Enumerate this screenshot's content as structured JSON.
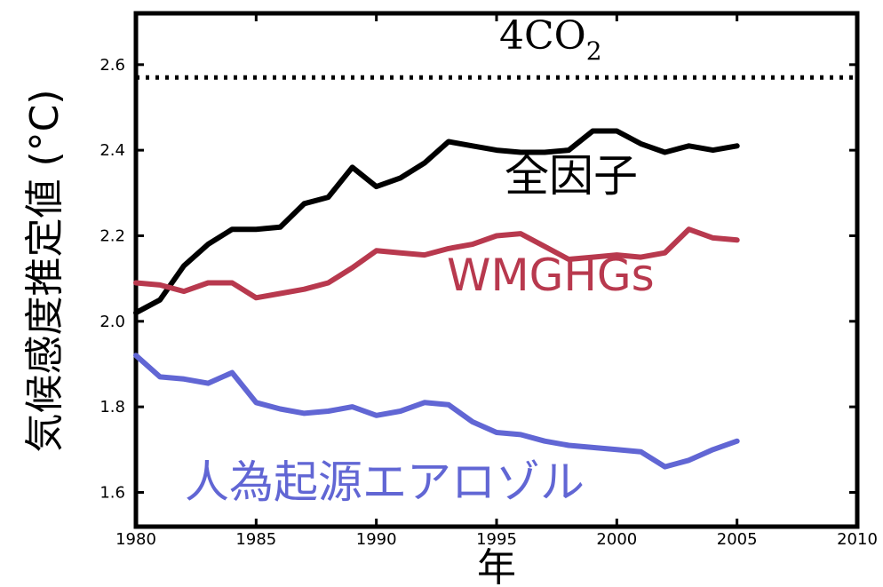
{
  "chart_data": {
    "type": "line",
    "xlabel": "年",
    "ylabel": "気候感度推定値 (°C)",
    "xlim": [
      1980,
      2010
    ],
    "ylim": [
      1.52,
      2.72
    ],
    "x_ticks": [
      1980,
      1985,
      1990,
      1995,
      2000,
      2005,
      2010
    ],
    "x_tick_labels": [
      "1980",
      "1985",
      "1990",
      "1995",
      "2000",
      "2005",
      "2010"
    ],
    "y_ticks": [
      1.6,
      1.8,
      2.0,
      2.2,
      2.4,
      2.6
    ],
    "y_tick_labels": [
      "1.6",
      "1.8",
      "2.0",
      "2.2",
      "2.4",
      "2.6"
    ],
    "grid": false,
    "reference_line": {
      "label": "4CO",
      "subscript": "2",
      "y": 2.57,
      "style": "dotted",
      "color": "#000000"
    },
    "series": [
      {
        "name": "全因子",
        "color": "#000000",
        "x": [
          1980,
          1981,
          1982,
          1983,
          1984,
          1985,
          1986,
          1987,
          1988,
          1989,
          1990,
          1991,
          1992,
          1993,
          1994,
          1995,
          1996,
          1997,
          1998,
          1999,
          2000,
          2001,
          2002,
          2003,
          2004,
          2005
        ],
        "y": [
          2.02,
          2.05,
          2.13,
          2.18,
          2.215,
          2.215,
          2.22,
          2.275,
          2.29,
          2.36,
          2.315,
          2.335,
          2.37,
          2.42,
          2.41,
          2.4,
          2.395,
          2.395,
          2.4,
          2.445,
          2.445,
          2.415,
          2.395,
          2.41,
          2.4,
          2.41
        ]
      },
      {
        "name": "WMGHGs",
        "color": "#b8394e",
        "x": [
          1980,
          1981,
          1982,
          1983,
          1984,
          1985,
          1986,
          1987,
          1988,
          1989,
          1990,
          1991,
          1992,
          1993,
          1994,
          1995,
          1996,
          1997,
          1998,
          1999,
          2000,
          2001,
          2002,
          2003,
          2004,
          2005
        ],
        "y": [
          2.09,
          2.085,
          2.07,
          2.09,
          2.09,
          2.055,
          2.065,
          2.075,
          2.09,
          2.125,
          2.165,
          2.16,
          2.155,
          2.17,
          2.18,
          2.2,
          2.205,
          2.175,
          2.145,
          2.15,
          2.155,
          2.15,
          2.16,
          2.215,
          2.195,
          2.19
        ]
      },
      {
        "name": "人為起源エアロゾル",
        "color": "#6166d4",
        "x": [
          1980,
          1981,
          1982,
          1983,
          1984,
          1985,
          1986,
          1987,
          1988,
          1989,
          1990,
          1991,
          1992,
          1993,
          1994,
          1995,
          1996,
          1997,
          1998,
          1999,
          2000,
          2001,
          2002,
          2003,
          2004,
          2005
        ],
        "y": [
          1.92,
          1.87,
          1.865,
          1.855,
          1.88,
          1.81,
          1.795,
          1.785,
          1.79,
          1.8,
          1.78,
          1.79,
          1.81,
          1.805,
          1.765,
          1.74,
          1.735,
          1.72,
          1.71,
          1.705,
          1.7,
          1.695,
          1.66,
          1.675,
          1.7,
          1.72
        ]
      }
    ]
  }
}
